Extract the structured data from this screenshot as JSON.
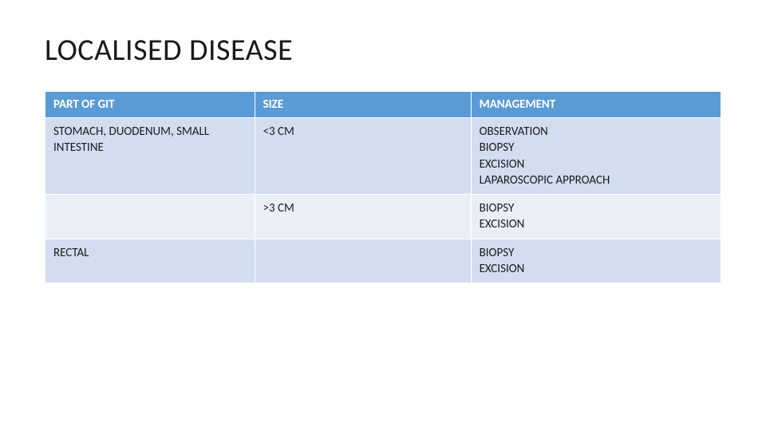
{
  "title": "LOCALISED DISEASE",
  "table": {
    "type": "table",
    "header_bg": "#5b9bd5",
    "header_fg": "#ffffff",
    "band_a": "#d2deef",
    "band_b": "#eaeff7",
    "border_color": "#ffffff",
    "font_size_header": 15,
    "font_size_cell": 15,
    "columns": [
      {
        "label": "PART OF GIT",
        "width_pct": 31
      },
      {
        "label": "SIZE",
        "width_pct": 32
      },
      {
        "label": "MANAGEMENT",
        "width_pct": 37
      }
    ],
    "rows": [
      {
        "band": "a",
        "part": "STOMACH, DUODENUM, SMALL INTESTINE",
        "size": "<3 CM",
        "management": [
          "OBSERVATION",
          "BIOPSY",
          "EXCISION",
          "LAPAROSCOPIC APPROACH"
        ]
      },
      {
        "band": "b",
        "part": "",
        "size": ">3 CM",
        "management": [
          "BIOPSY",
          "EXCISION"
        ]
      },
      {
        "band": "a",
        "part": "RECTAL",
        "size": "",
        "management": [
          "BIOPSY",
          "EXCISION"
        ]
      }
    ]
  }
}
